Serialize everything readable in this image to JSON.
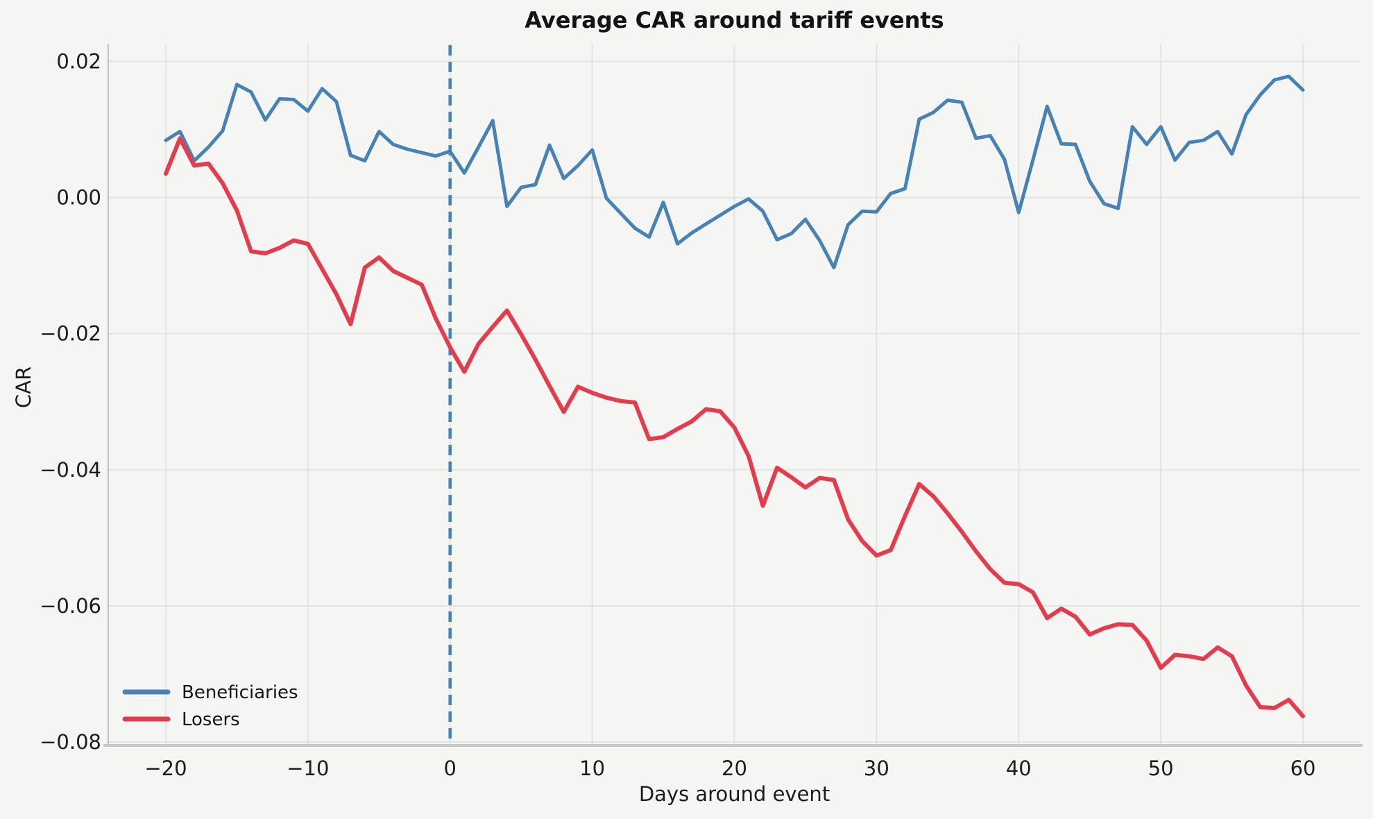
{
  "title": "Average CAR around tariff events",
  "axes": {
    "x_label": "Days around event",
    "y_label": "CAR"
  },
  "colors": {
    "background": "#f5f5f3",
    "grid": "#e3e3e3",
    "spine": "#c8c8c8",
    "tick_text": "#1c1c1c",
    "beneficiaries": "#4682b4",
    "losers": "#e23d4d",
    "event_line": "#4682b4"
  },
  "legend": {
    "position": "lower left",
    "items": [
      {
        "label": "Beneficiaries",
        "color": "#4682b4"
      },
      {
        "label": "Losers",
        "color": "#e23d4d"
      }
    ]
  },
  "chart_data": {
    "type": "line",
    "title": "Average CAR around tariff events",
    "xlabel": "Days around event",
    "ylabel": "CAR",
    "grid": true,
    "legend_position": "lower left",
    "xlim": [
      -24,
      64
    ],
    "ylim": [
      -0.0803,
      0.0226
    ],
    "event_line_x": 0,
    "event_line_style": "dashed",
    "xtick_values": [
      -20,
      -10,
      0,
      10,
      20,
      30,
      40,
      50,
      60
    ],
    "xtick_labels": [
      "−20",
      "−10",
      "0",
      "10",
      "20",
      "30",
      "40",
      "50",
      "60"
    ],
    "ytick_values": [
      0.02,
      0.0,
      -0.02,
      -0.04,
      -0.06,
      -0.08
    ],
    "ytick_labels": [
      "0.02",
      "0.00",
      "−0.02",
      "−0.04",
      "−0.06",
      "−0.08"
    ],
    "x": [
      -20,
      -19,
      -18,
      -17,
      -16,
      -15,
      -14,
      -13,
      -12,
      -11,
      -10,
      -9,
      -8,
      -7,
      -6,
      -5,
      -4,
      -3,
      -2,
      -1,
      0,
      1,
      2,
      3,
      4,
      5,
      6,
      7,
      8,
      9,
      10,
      11,
      12,
      13,
      14,
      15,
      16,
      17,
      18,
      19,
      20,
      21,
      22,
      23,
      24,
      25,
      26,
      27,
      28,
      29,
      30,
      31,
      32,
      33,
      34,
      35,
      36,
      37,
      38,
      39,
      40,
      41,
      42,
      43,
      44,
      45,
      46,
      47,
      48,
      49,
      50,
      51,
      52,
      53,
      54,
      55,
      56,
      57,
      58,
      59,
      60
    ],
    "series": [
      {
        "name": "Beneficiaries",
        "color": "#4682b4",
        "values": [
          0.0084,
          0.0097,
          0.0054,
          0.0074,
          0.0098,
          0.0166,
          0.0155,
          0.0114,
          0.0145,
          0.0144,
          0.0127,
          0.016,
          0.0141,
          0.0062,
          0.0054,
          0.0097,
          0.0078,
          0.0071,
          0.0066,
          0.0061,
          0.0068,
          0.0036,
          0.0074,
          0.0113,
          -0.0013,
          0.0015,
          0.0019,
          0.0077,
          0.0028,
          0.0047,
          0.007,
          -0.0001,
          -0.0023,
          -0.0045,
          -0.0058,
          -0.0007,
          -0.0068,
          -0.0052,
          -0.0039,
          -0.0026,
          -0.0013,
          -0.0002,
          -0.002,
          -0.0062,
          -0.0053,
          -0.0032,
          -0.0063,
          -0.0103,
          -0.004,
          -0.002,
          -0.0021,
          0.0006,
          0.0013,
          0.0115,
          0.0125,
          0.0143,
          0.014,
          0.0087,
          0.0091,
          0.0056,
          -0.0022,
          0.0055,
          0.0134,
          0.0079,
          0.0078,
          0.0024,
          -0.0009,
          -0.0016,
          0.0104,
          0.0078,
          0.0104,
          0.0055,
          0.0081,
          0.0084,
          0.0097,
          0.0064,
          0.0122,
          0.0151,
          0.0173,
          0.0178,
          0.0158
        ]
      },
      {
        "name": "Losers",
        "color": "#e23d4d",
        "values": [
          0.0035,
          0.0087,
          0.0047,
          0.005,
          0.0021,
          -0.0019,
          -0.0079,
          -0.0082,
          -0.0074,
          -0.0063,
          -0.0068,
          -0.0105,
          -0.0142,
          -0.0186,
          -0.0103,
          -0.0088,
          -0.0108,
          -0.0118,
          -0.0128,
          -0.0178,
          -0.022,
          -0.0256,
          -0.0215,
          -0.019,
          -0.0166,
          -0.0201,
          -0.0238,
          -0.0277,
          -0.0315,
          -0.0278,
          -0.0287,
          -0.0294,
          -0.0299,
          -0.0301,
          -0.0355,
          -0.0352,
          -0.034,
          -0.0329,
          -0.0311,
          -0.0314,
          -0.0338,
          -0.038,
          -0.0453,
          -0.0397,
          -0.0411,
          -0.0426,
          -0.0412,
          -0.0415,
          -0.0473,
          -0.0505,
          -0.0526,
          -0.0518,
          -0.0468,
          -0.0421,
          -0.0439,
          -0.0464,
          -0.0491,
          -0.052,
          -0.0546,
          -0.0566,
          -0.0568,
          -0.058,
          -0.0618,
          -0.0604,
          -0.0616,
          -0.0642,
          -0.0633,
          -0.0627,
          -0.0628,
          -0.0651,
          -0.0691,
          -0.0672,
          -0.0674,
          -0.0678,
          -0.0661,
          -0.0674,
          -0.0717,
          -0.0749,
          -0.075,
          -0.0738,
          -0.0762
        ]
      }
    ]
  }
}
